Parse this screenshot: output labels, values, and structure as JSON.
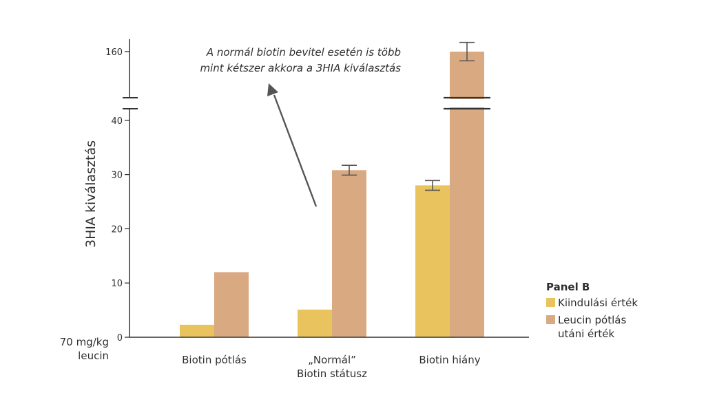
{
  "chart_data": {
    "type": "bar",
    "ylabel": "3HIA kiválasztás",
    "bottom_left_label": [
      "70 mg/kg",
      "leucin"
    ],
    "categories": [
      [
        "Biotin pótlás"
      ],
      [
        "„Normál”",
        "Biotin státusz"
      ],
      [
        "Biotin hiány"
      ]
    ],
    "series": [
      {
        "name": "Kiindulási érték",
        "values": [
          2.3,
          5.1,
          28
        ],
        "errors": [
          null,
          null,
          0.9
        ],
        "color": "#e8c35e"
      },
      {
        "name": "Leucin pótlás utáni érték",
        "values": [
          12,
          30.8,
          160
        ],
        "errors": [
          null,
          0.9,
          1.2
        ],
        "color": "#d9a982"
      }
    ],
    "y_ticks_lower": [
      0,
      10,
      20,
      30,
      40
    ],
    "y_ticks_upper": [
      160
    ],
    "ylim_lower": [
      0,
      40
    ],
    "ylim_upper": [
      160
    ],
    "axis_break": true,
    "grid": false,
    "legend": {
      "title": "Panel B",
      "position": "right",
      "entries": [
        {
          "lines": [
            "Kiindulási érték"
          ],
          "color": "#e8c35e"
        },
        {
          "lines": [
            "Leucin pótlás",
            "utáni érték"
          ],
          "color": "#d9a982"
        }
      ]
    },
    "annotation": {
      "lines": [
        "A normál biotin bevitel esetén is több",
        "mint kétszer akkora a 3HIA kiválasztás"
      ]
    }
  }
}
